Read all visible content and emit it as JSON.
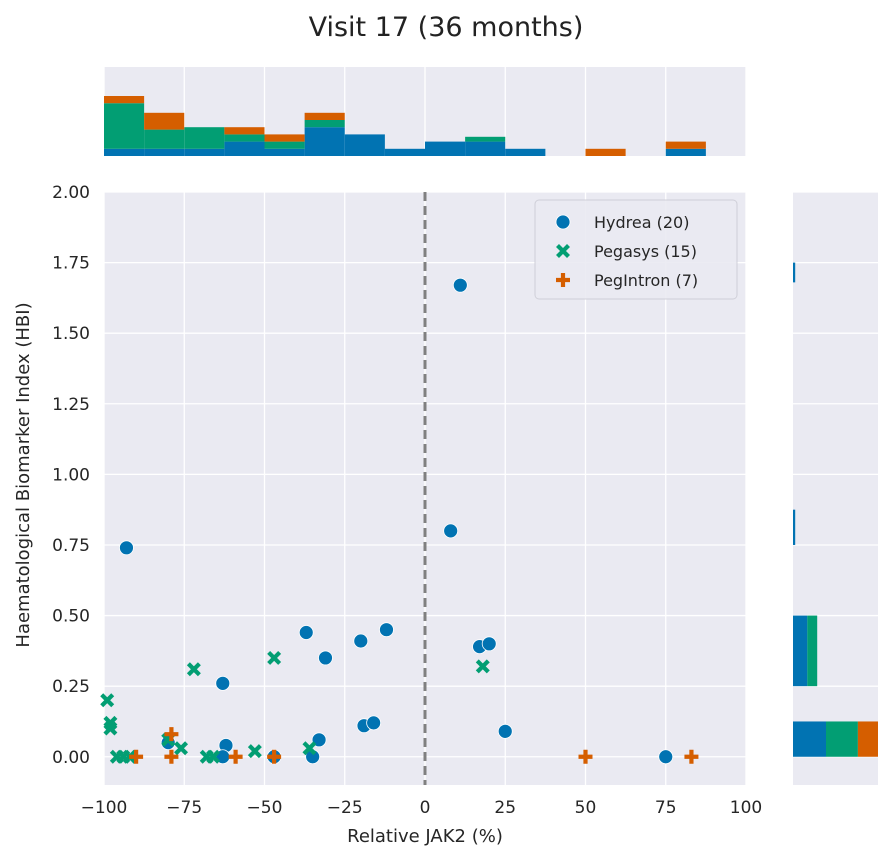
{
  "chart_data": {
    "type": "scatter",
    "title": "Visit 17 (36 months)",
    "xlabel": "Relative JAK2 (%)",
    "ylabel": "Haematological Biomarker Index (HBI)",
    "xlim": [
      -100,
      100
    ],
    "ylim": [
      -0.1,
      2.0
    ],
    "xticks": [
      "−100",
      "−75",
      "−50",
      "−25",
      "0",
      "25",
      "50",
      "75",
      "100"
    ],
    "xtick_values": [
      -100,
      -75,
      -50,
      -25,
      0,
      25,
      50,
      75,
      100
    ],
    "yticks": [
      "0.00",
      "0.25",
      "0.50",
      "0.75",
      "1.00",
      "1.25",
      "1.50",
      "1.75",
      "2.00"
    ],
    "ytick_values": [
      0,
      0.25,
      0.5,
      0.75,
      1.0,
      1.25,
      1.5,
      1.75,
      2.0
    ],
    "reference_line_x": 0,
    "grid": true,
    "legend_position": "top-right",
    "colors": {
      "Hydrea": "#0173b2",
      "Pegasys": "#029e73",
      "PegIntron": "#d55e00",
      "background": "#eaeaf2",
      "refline": "#808080"
    },
    "series": [
      {
        "name": "Hydrea (20)",
        "marker": "circle",
        "x": [
          -93,
          -63,
          -62,
          -37,
          -35,
          -33,
          -31,
          -20,
          -19,
          -16,
          -12,
          8,
          11,
          17,
          20,
          25,
          -80,
          -63,
          -47,
          75
        ],
        "y": [
          0.74,
          0.26,
          0.04,
          0.44,
          0.0,
          0.06,
          0.35,
          0.41,
          0.11,
          0.12,
          0.45,
          0.8,
          1.67,
          0.39,
          0.4,
          0.09,
          0.05,
          0.0,
          0.0,
          0.0
        ]
      },
      {
        "name": "Pegasys (15)",
        "marker": "x",
        "x": [
          -99,
          -98,
          -98,
          -96,
          -94,
          -92,
          -80,
          -76,
          -72,
          -68,
          -66,
          -53,
          -47,
          -36,
          18
        ],
        "y": [
          0.2,
          0.12,
          0.1,
          0.0,
          0.0,
          0.0,
          0.06,
          0.03,
          0.31,
          0.0,
          0.0,
          0.02,
          0.35,
          0.03,
          0.32
        ]
      },
      {
        "name": "PegIntron (7)",
        "marker": "plus",
        "x": [
          -90,
          -79,
          -79,
          -59,
          -47,
          50,
          83
        ],
        "y": [
          0.0,
          0.08,
          0.0,
          0.0,
          0.0,
          0.0,
          0.0
        ]
      }
    ],
    "top_histogram": {
      "bin_edges": [
        -100,
        -87.5,
        -75,
        -62.5,
        -50,
        -37.5,
        -25,
        -12.5,
        0,
        12.5,
        25,
        37.5,
        50,
        62.5,
        75,
        87.5
      ],
      "stacked": [
        {
          "series": "Hydrea",
          "counts": [
            0.3,
            0.3,
            0.3,
            0.6,
            0.3,
            1.2,
            0.9,
            0.3,
            0.6,
            0.6,
            0.3,
            0,
            0,
            0,
            0.3
          ]
        },
        {
          "series": "Pegasys",
          "counts": [
            1.9,
            0.8,
            0.9,
            0.3,
            0.3,
            0.3,
            0,
            0,
            0,
            0.2,
            0,
            0,
            0,
            0,
            0
          ]
        },
        {
          "series": "PegIntron",
          "counts": [
            0.3,
            0.7,
            0,
            0.3,
            0.3,
            0.3,
            0,
            0,
            0,
            0,
            0,
            0,
            0.3,
            0,
            0.3
          ]
        }
      ]
    },
    "right_histogram": {
      "bins": [
        {
          "y": [
            1.68,
            1.75
          ],
          "Hydrea": 0.2,
          "Pegasys": 0,
          "PegIntron": 0
        },
        {
          "y": [
            0.75,
            0.875
          ],
          "Hydrea": 0.2,
          "Pegasys": 0,
          "PegIntron": 0
        },
        {
          "y": [
            0.25,
            0.5
          ],
          "Hydrea": 1.3,
          "Pegasys": 0.9,
          "PegIntron": 0
        },
        {
          "y": [
            0.0,
            0.125
          ],
          "Hydrea": 3.0,
          "Pegasys": 2.9,
          "PegIntron": 2.0
        },
        {
          "y": [
            -0.01,
            0.0
          ],
          "Hydrea": 0,
          "Pegasys": 0,
          "PegIntron": 0
        }
      ]
    }
  }
}
